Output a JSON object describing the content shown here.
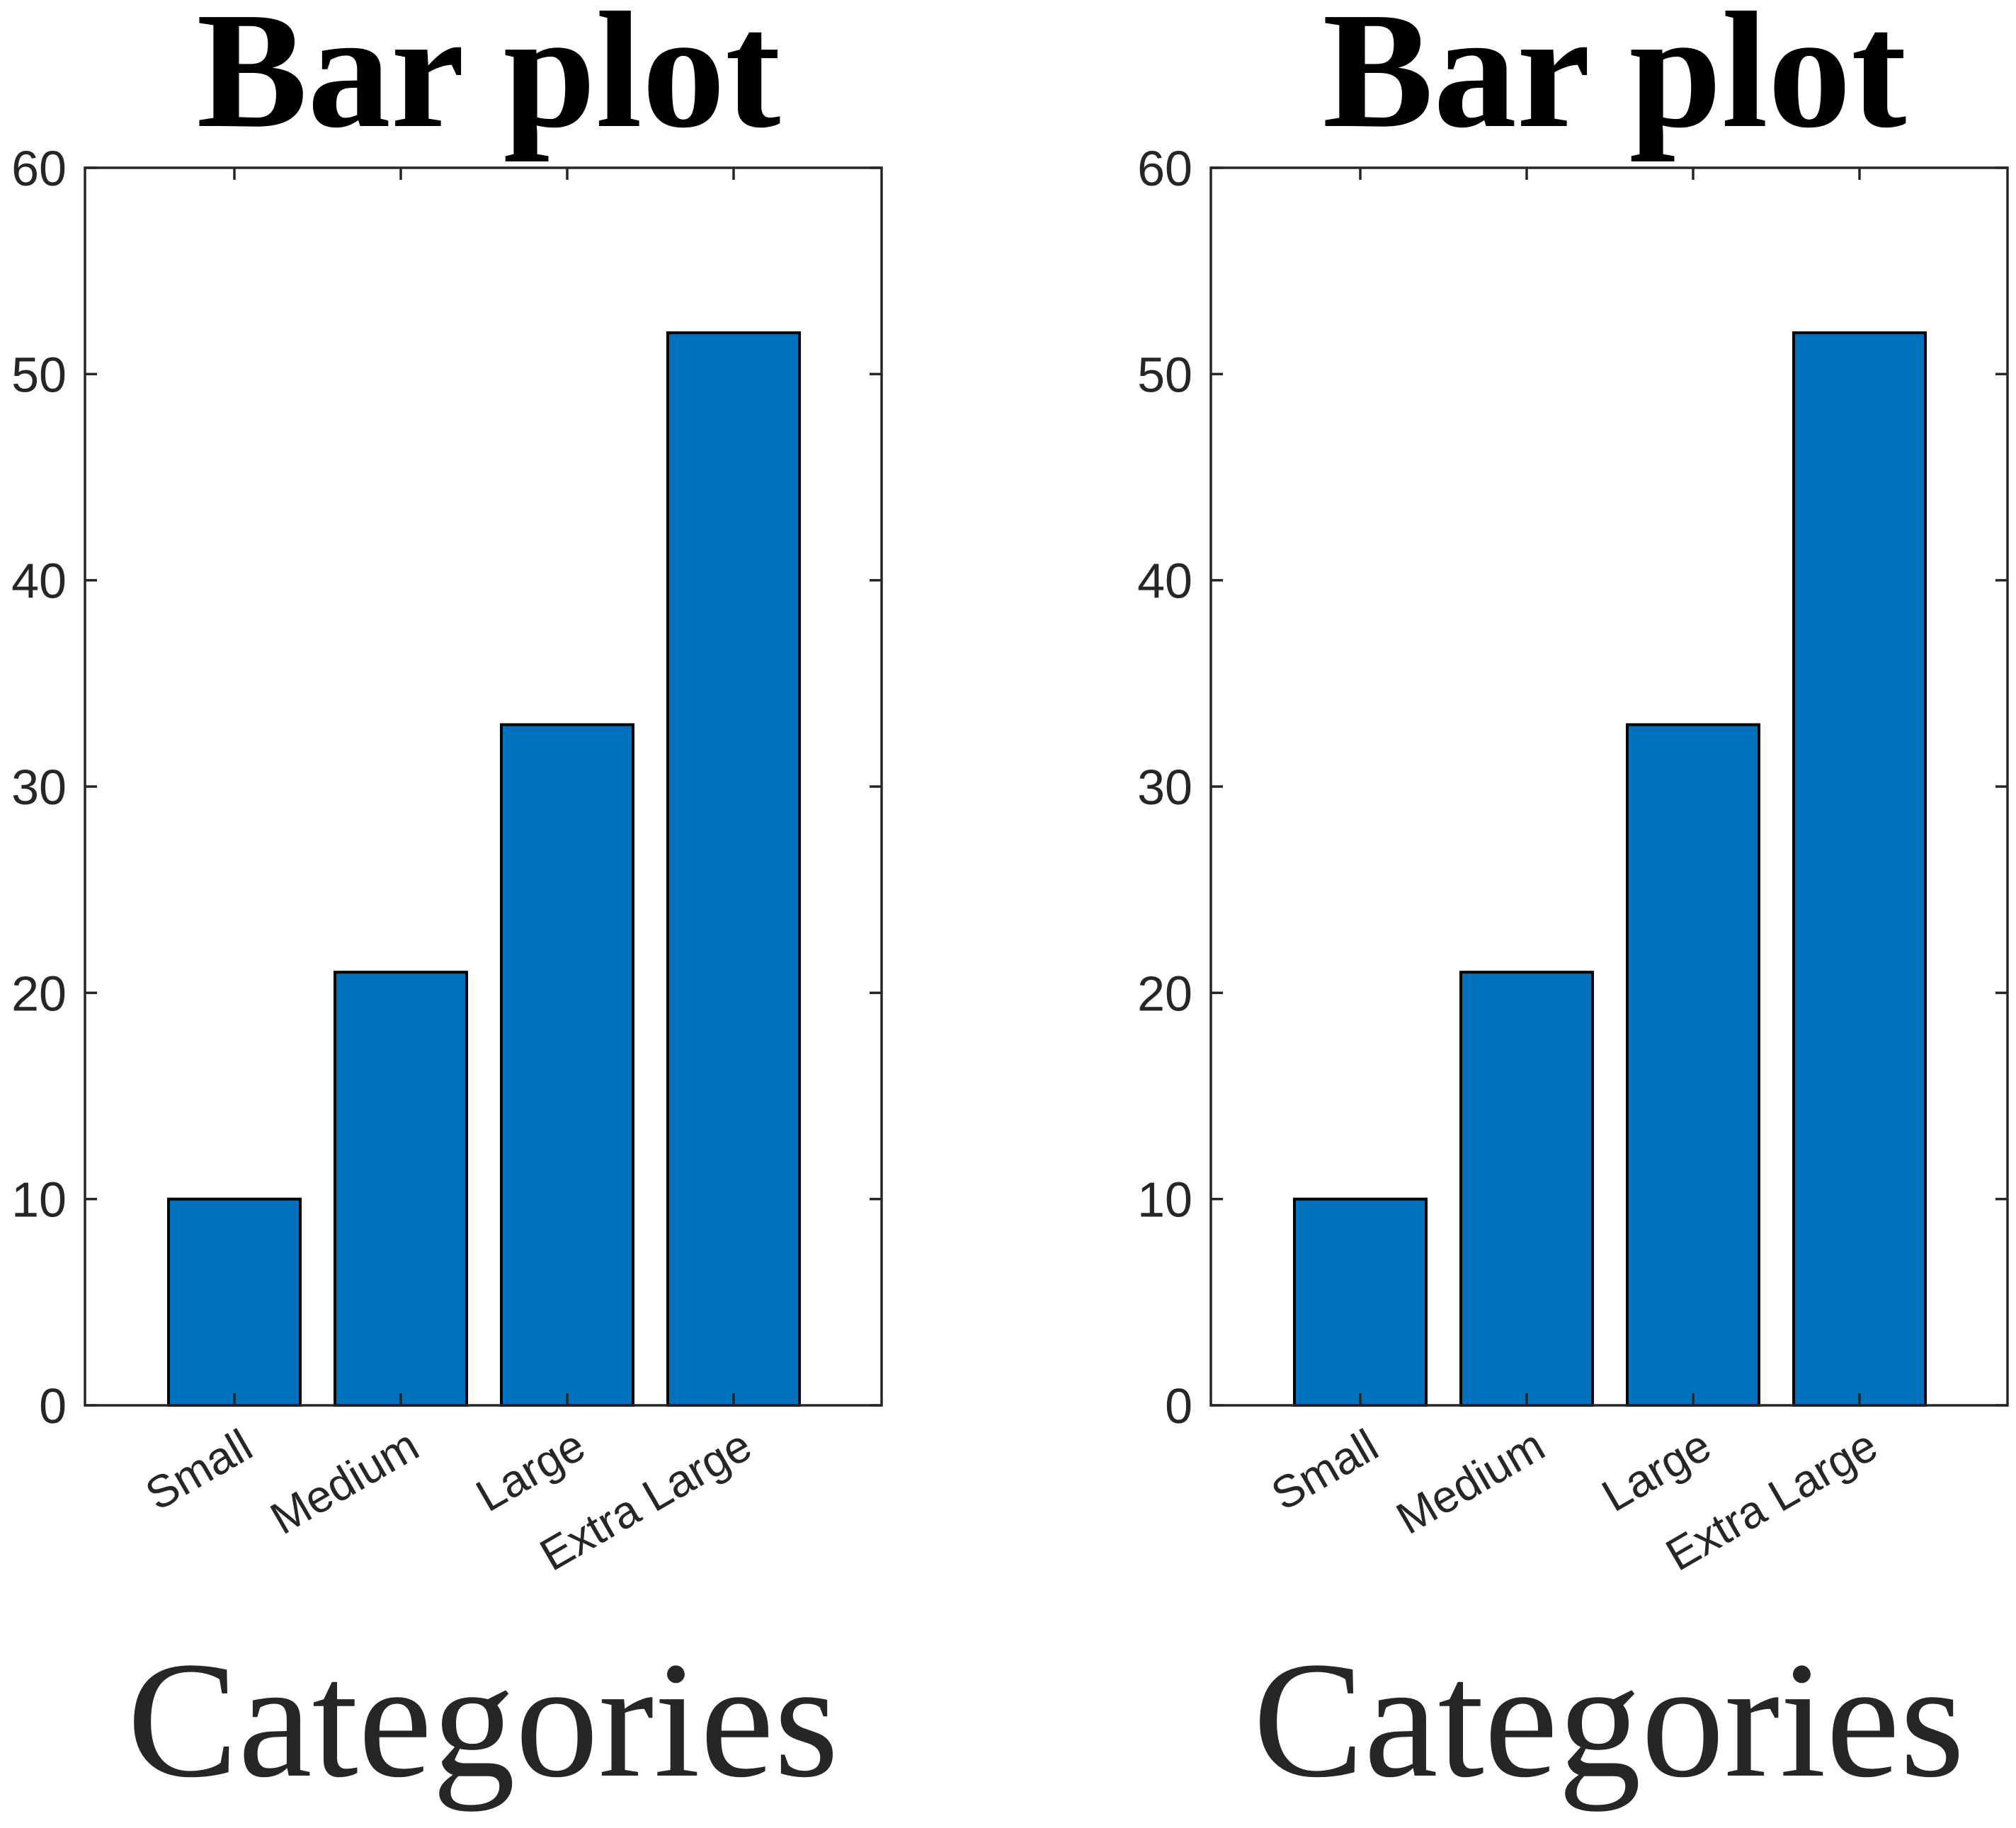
{
  "chart_data": [
    {
      "type": "bar",
      "title": "Bar plot",
      "xlabel": "Categories",
      "ylabel": "",
      "categories": [
        "Small",
        "Medium",
        "Large",
        "Extra Large"
      ],
      "values": [
        10,
        21,
        33,
        52
      ],
      "ylim": [
        0,
        60
      ],
      "yticks": [
        0,
        10,
        20,
        30,
        40,
        50,
        60
      ],
      "grid": false,
      "bar_color": "#0072BD"
    },
    {
      "type": "bar",
      "title": "Bar plot",
      "xlabel": "Categories",
      "ylabel": "",
      "categories": [
        "Small",
        "Medium",
        "Large",
        "Extra Large"
      ],
      "values": [
        10,
        21,
        33,
        52
      ],
      "ylim": [
        0,
        60
      ],
      "yticks": [
        0,
        10,
        20,
        30,
        40,
        50,
        60
      ],
      "grid": false,
      "bar_color": "#0072BD"
    }
  ]
}
